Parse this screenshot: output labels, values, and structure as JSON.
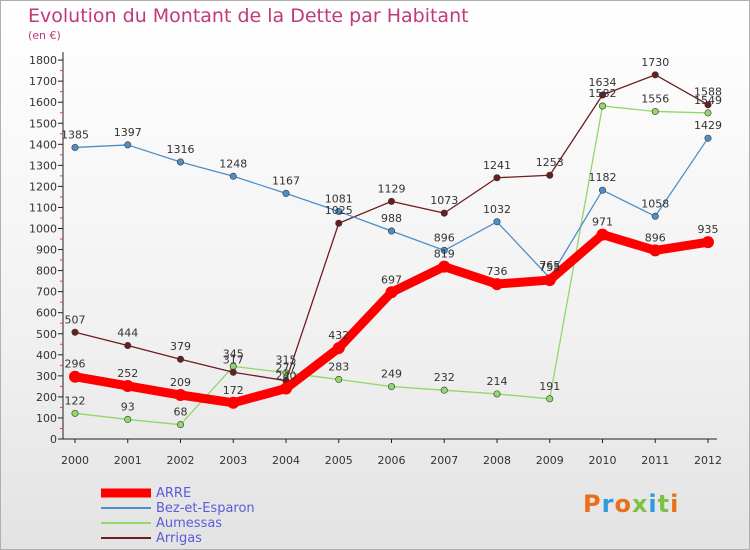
{
  "title": "Evolution du Montant de la Dette par Habitant",
  "subtitle": "(en €)",
  "logo": "Proxiti",
  "chart_data": {
    "type": "line",
    "title": "Evolution du Montant de la Dette par Habitant",
    "subtitle": "(en €)",
    "x": [
      "2000",
      "2001",
      "2002",
      "2003",
      "2004",
      "2005",
      "2006",
      "2007",
      "2008",
      "2009",
      "2010",
      "2011",
      "2012"
    ],
    "ylim": [
      0,
      1800
    ],
    "yticks": [
      0,
      100,
      200,
      300,
      400,
      500,
      600,
      700,
      800,
      900,
      1000,
      1100,
      1200,
      1300,
      1400,
      1500,
      1600,
      1700,
      1800
    ],
    "grid": false,
    "legend_position": "bottom-left",
    "series": [
      {
        "name": "ARRE",
        "color": "#ff0000",
        "values": [
          296,
          252,
          209,
          172,
          240,
          432,
          697,
          819,
          736,
          755,
          971,
          896,
          935
        ]
      },
      {
        "name": "Bez-et-Esparon",
        "color": "#4f8fc8",
        "values": [
          1385,
          1397,
          1316,
          1248,
          1167,
          1081,
          988,
          896,
          1032,
          765,
          1182,
          1058,
          1429
        ]
      },
      {
        "name": "Aumessas",
        "color": "#90d86a",
        "values": [
          122,
          93,
          68,
          345,
          315,
          283,
          249,
          232,
          214,
          191,
          1582,
          1556,
          1549
        ]
      },
      {
        "name": "Arrigas",
        "color": "#6b1e1e",
        "values": [
          507,
          444,
          379,
          317,
          277,
          1025,
          1129,
          1073,
          1241,
          1253,
          1634,
          1730,
          1588
        ]
      }
    ]
  }
}
